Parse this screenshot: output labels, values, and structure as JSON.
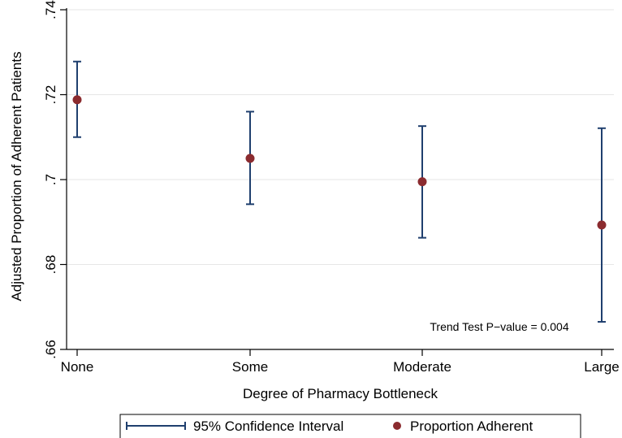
{
  "chart_data": {
    "type": "scatter",
    "title": "",
    "xlabel": "Degree of Pharmacy Bottleneck",
    "ylabel": "Adjusted Proportion of Adherent Patients",
    "categories": [
      "None",
      "Some",
      "Moderate",
      "Large"
    ],
    "ylim": [
      0.66,
      0.74
    ],
    "yticks": [
      0.66,
      0.68,
      0.7,
      0.72,
      0.74
    ],
    "ytick_labels": [
      ".66",
      ".68",
      ".7",
      ".72",
      ".74"
    ],
    "grid": true,
    "series": [
      {
        "name": "Proportion Adherent",
        "marker": "circle",
        "color": "#8b2b2f",
        "values": [
          0.7188,
          0.705,
          0.6995,
          0.6893
        ]
      },
      {
        "name": "95% Confidence Interval",
        "marker": "capped-bar",
        "color": "#1f3f6e",
        "lower": [
          0.71,
          0.6942,
          0.6863,
          0.6665
        ],
        "upper": [
          0.7278,
          0.716,
          0.7126,
          0.7121
        ]
      }
    ],
    "annotation": "Trend Test P−value = 0.004",
    "legend_position": "bottom"
  }
}
